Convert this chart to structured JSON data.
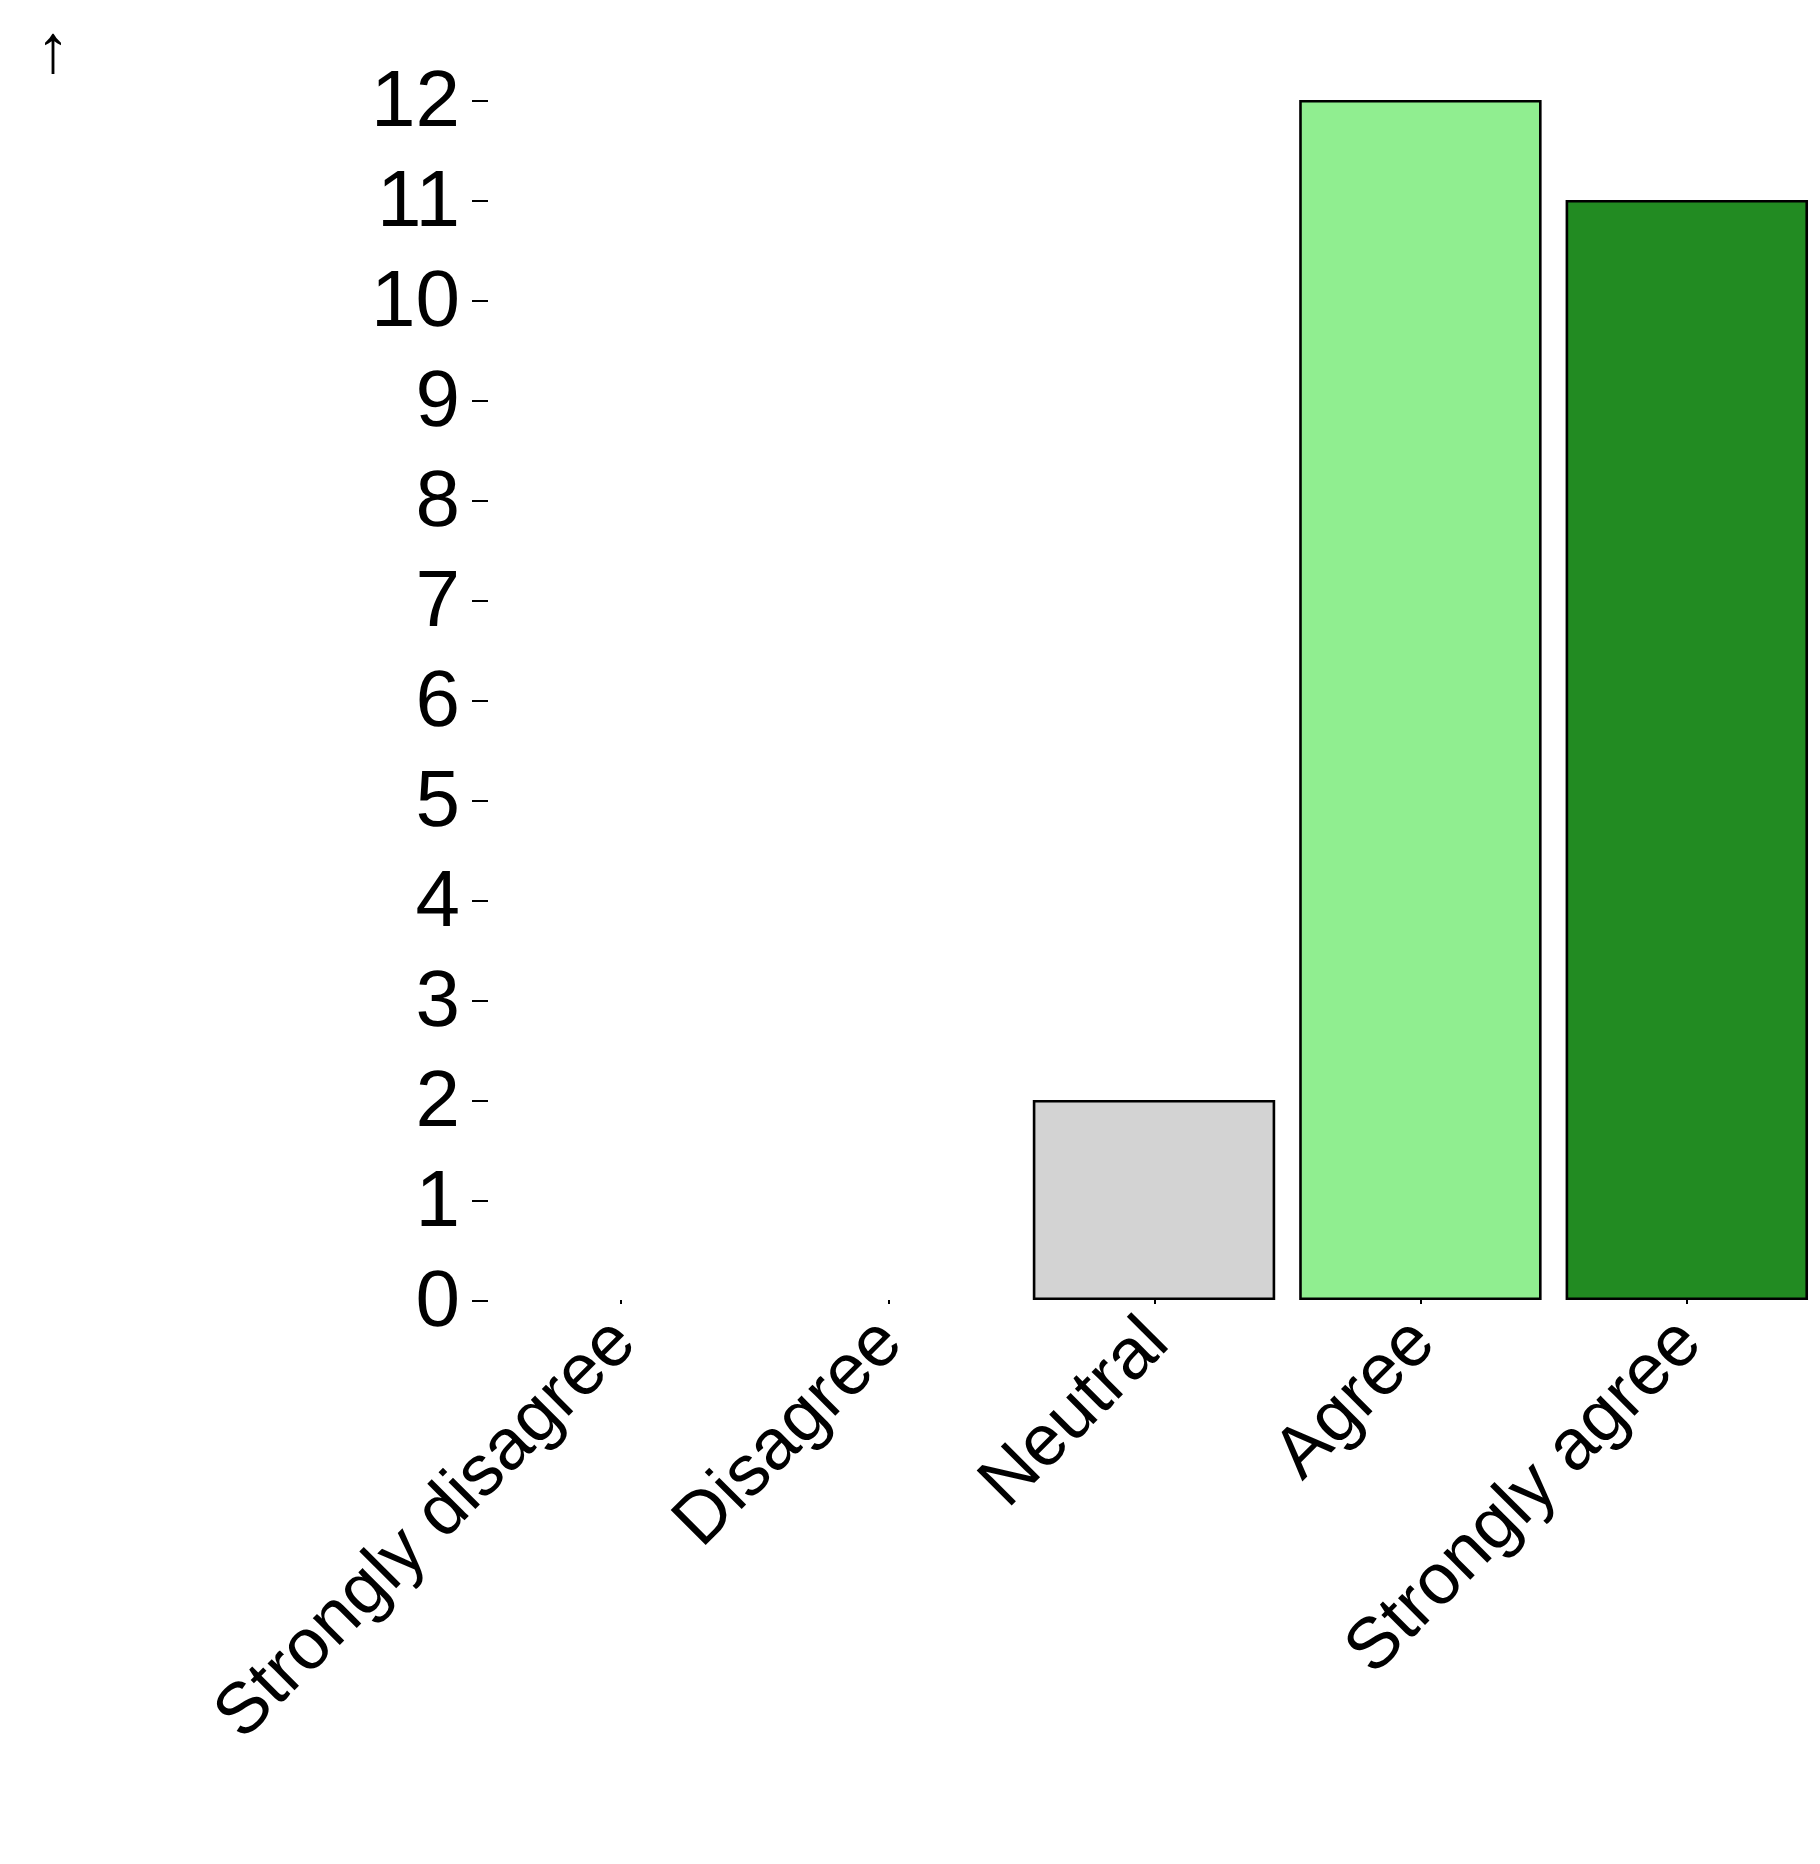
{
  "chart_data": {
    "type": "bar",
    "ylabel": "↑",
    "categories": [
      "Strongly disagree",
      "Disagree",
      "Neutral",
      "Agree",
      "Strongly agree"
    ],
    "values": [
      0,
      0,
      2,
      12,
      11
    ],
    "colors": [
      "#e9967a",
      "#f08080",
      "#d3d3d3",
      "#90ee90",
      "#228b22"
    ],
    "ylim": [
      0,
      12
    ],
    "yticks": [
      0,
      1,
      2,
      3,
      4,
      5,
      6,
      7,
      8,
      9,
      10,
      11,
      12
    ],
    "grid": false
  }
}
